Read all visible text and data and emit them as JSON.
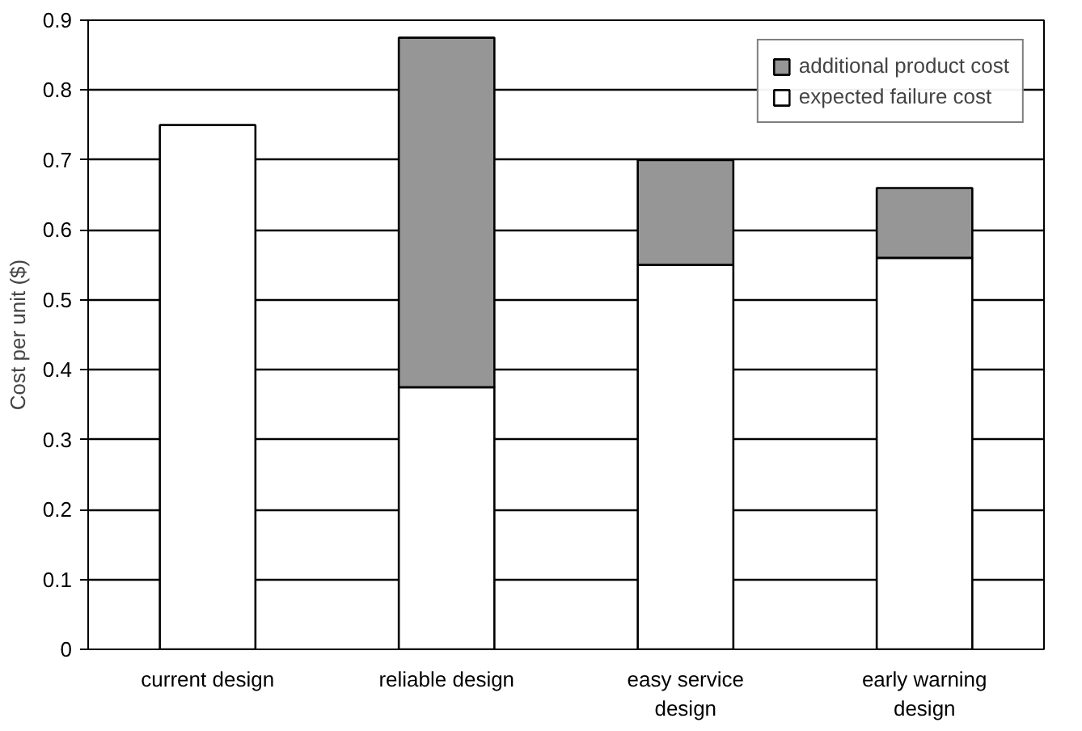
{
  "chart_data": {
    "type": "bar",
    "stacked": true,
    "ylabel": "Cost per unit ($)",
    "categories": [
      "current design",
      "reliable design",
      "easy service design",
      "early warning design"
    ],
    "series": [
      {
        "name": "expected failure cost",
        "color": "#ffffff",
        "values": [
          0.75,
          0.375,
          0.55,
          0.56
        ]
      },
      {
        "name": "additional product cost",
        "color": "#969696",
        "values": [
          null,
          0.5,
          0.15,
          0.1
        ]
      }
    ],
    "ylim": [
      0,
      0.9
    ],
    "yticks": [
      0,
      0.1,
      0.2,
      0.3,
      0.4,
      0.5,
      0.6,
      0.7,
      0.8,
      0.9
    ],
    "grid": "y",
    "legend": "top right"
  }
}
